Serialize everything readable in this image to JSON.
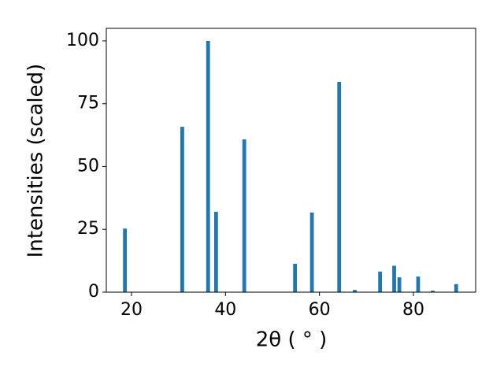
{
  "chart_data": {
    "type": "bar",
    "xlabel": "2θ ( ° )",
    "ylabel": "Intensities (scaled)",
    "x": [
      18.6,
      30.8,
      36.3,
      38.0,
      44.0,
      54.8,
      58.4,
      64.2,
      67.5,
      72.9,
      75.9,
      77.0,
      81.0,
      84.1,
      89.1
    ],
    "values": [
      25.3,
      65.8,
      100,
      32,
      60.8,
      11.3,
      31.7,
      83.7,
      0.9,
      8.2,
      10.5,
      5.9,
      6.2,
      0.6,
      3.2
    ],
    "color": "#1f77b4",
    "xlim": [
      14.64,
      93.24
    ],
    "ylim": [
      0,
      105
    ],
    "xticks": [
      20,
      40,
      60,
      80
    ],
    "yticks": [
      0,
      25,
      50,
      75,
      100
    ]
  }
}
